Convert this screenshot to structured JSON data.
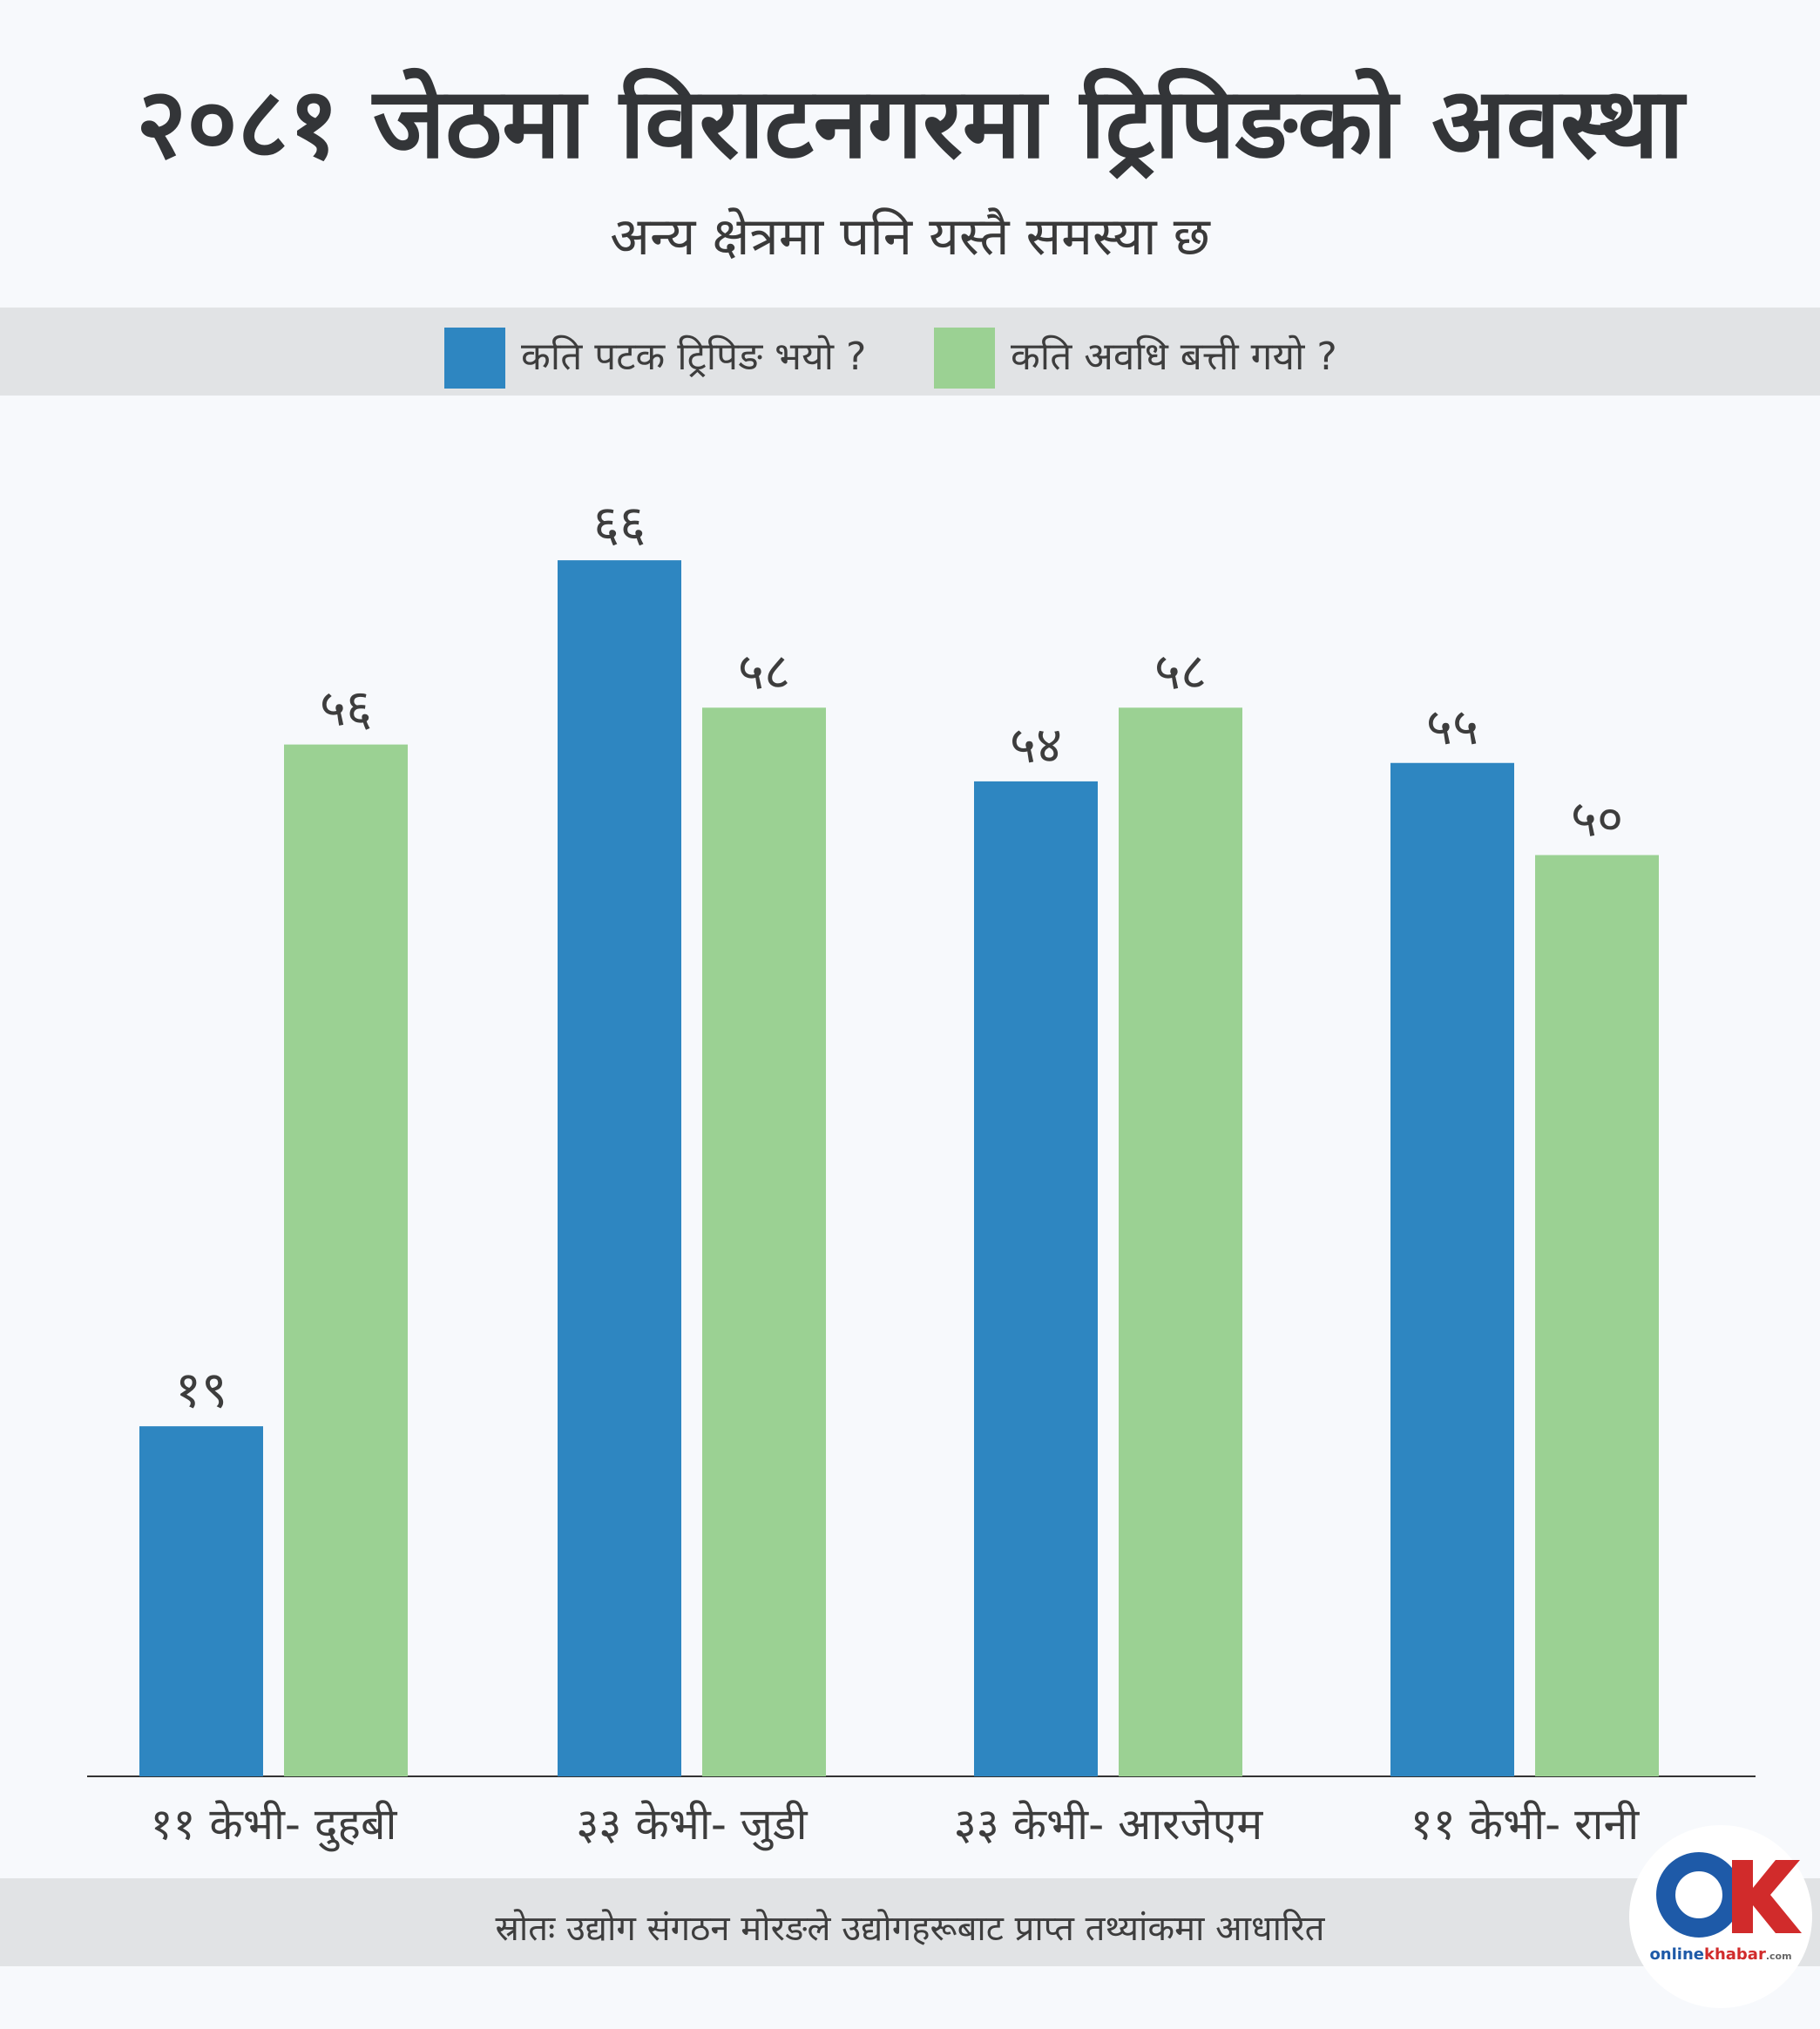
{
  "title": "२०८१ जेठमा विराटनगरमा ट्रिपिङको अवस्था",
  "subtitle": "अन्य क्षेत्रमा पनि यस्तै समस्या छ",
  "source": "स्रोतः उद्योग संगठन मोरङले उद्योगहरूबाट प्राप्त तथ्यांकमा आधारित",
  "logo": {
    "name": "onlinekhabar",
    "part1": "online",
    "part2": "khabar",
    "suffix": ".com"
  },
  "colors": {
    "series1": "#2e86c1",
    "series2": "#9bd193",
    "axis": "#333333",
    "logo_blue": "#1e5aa8",
    "logo_red": "#d12b2b"
  },
  "chart_data": {
    "type": "bar",
    "categories": [
      "११ केभी- दुहबी",
      "३३ केभी- जुडी",
      "३३ केभी- आरजेएम",
      "११ केभी- रानी"
    ],
    "series": [
      {
        "name": "कति पटक ट्रिपिङ भयो ?",
        "values": [
          19,
          66,
          54,
          55
        ],
        "labels": [
          "१९",
          "६६",
          "५४",
          "५५"
        ]
      },
      {
        "name": "कति अवधि बत्ती गयो ?",
        "values": [
          56,
          58,
          58,
          50
        ],
        "labels": [
          "५६",
          "५८",
          "५८",
          "५०"
        ]
      }
    ],
    "ylim": [
      0,
      75
    ],
    "grid": false,
    "legend": "top"
  }
}
